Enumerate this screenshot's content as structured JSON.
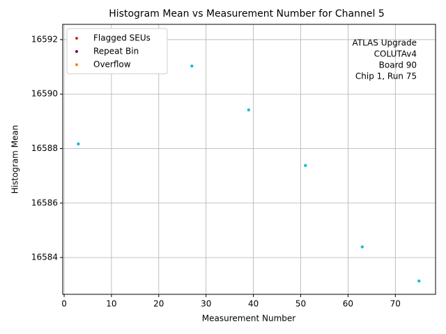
{
  "chart_data": {
    "type": "scatter",
    "title": "Histogram Mean vs Measurement Number for Channel 5",
    "xlabel": "Measurement Number",
    "ylabel": "Histogram Mean",
    "annotation": [
      "ATLAS Upgrade",
      "COLUTAv4",
      "Board 90",
      "Chip 1, Run 75"
    ],
    "series": [
      {
        "color": "#17becf",
        "x": [
          3,
          27,
          39,
          51,
          63,
          75
        ],
        "values": [
          16588.17,
          16591.03,
          16589.42,
          16587.38,
          16584.39,
          16583.14
        ]
      },
      {
        "name": "Flagged SEUs",
        "color": "#d62728",
        "x": [],
        "values": []
      },
      {
        "name": "Repeat Bin",
        "color": "#800060",
        "x": [],
        "values": []
      },
      {
        "name": "Overflow",
        "color": "#ff7f0e",
        "x": [],
        "values": []
      }
    ],
    "xlim": [
      -0.3,
      78.5
    ],
    "xticks": [
      0,
      10,
      20,
      30,
      40,
      50,
      60,
      70
    ],
    "ylim": [
      16582.65,
      16592.56
    ],
    "yticks": [
      16584,
      16586,
      16588,
      16590,
      16592
    ],
    "grid": true,
    "legend": "upper left"
  }
}
